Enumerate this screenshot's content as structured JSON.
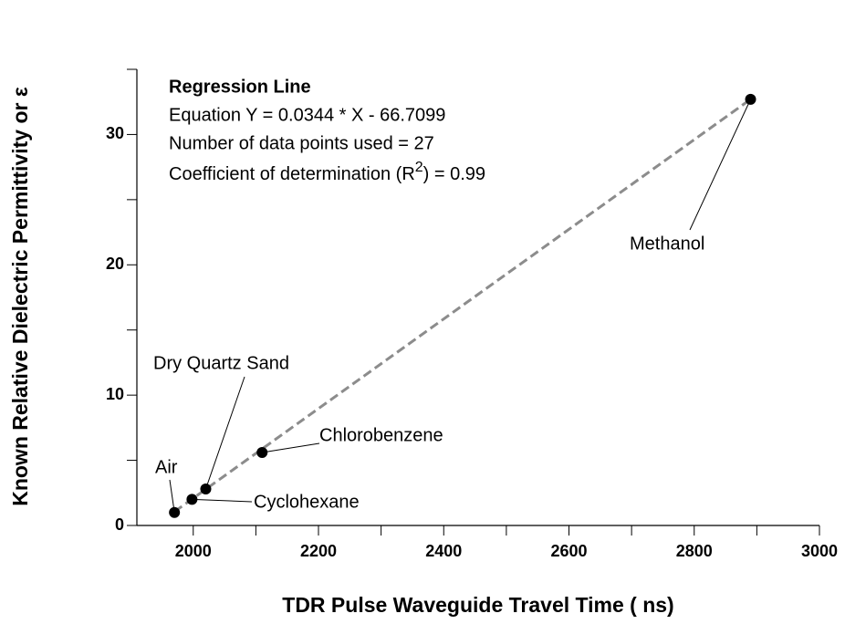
{
  "chart_data": {
    "type": "scatter",
    "x_label": "TDR Pulse Waveguide Travel Time ( ns)",
    "y_label": "Known Relative Dielectric Permittivity or ε",
    "annotation": {
      "heading": "Regression Line",
      "equation": "Equation Y = 0.0344 * X - 66.7099",
      "points_used": "Number of data points used = 27",
      "r2": [
        "Coefficient of determination (R",
        "2",
        ") = 0.99"
      ]
    },
    "labels": [
      "Air",
      "Cyclohexane",
      "Dry Quartz Sand",
      "Chlorobenzene",
      "Methanol"
    ],
    "x": [
      1970,
      1998,
      2020,
      2110,
      2890
    ],
    "y": [
      1.0,
      2.0,
      2.8,
      5.6,
      32.7
    ],
    "color": "#000000",
    "regression": {
      "x": [
        1970,
        2890
      ],
      "y": [
        1.06,
        32.7
      ],
      "color": "#8c8c8c"
    },
    "xlim": [
      1910,
      3000
    ],
    "ylim": [
      0,
      35
    ],
    "xticks": [
      2000,
      2200,
      2400,
      2600,
      2800,
      3000
    ],
    "xminor": [
      2100,
      2300,
      2500,
      2700,
      2900
    ],
    "yticks": [
      0,
      10,
      20,
      30
    ],
    "yminor": [
      5,
      15,
      25,
      35
    ]
  }
}
